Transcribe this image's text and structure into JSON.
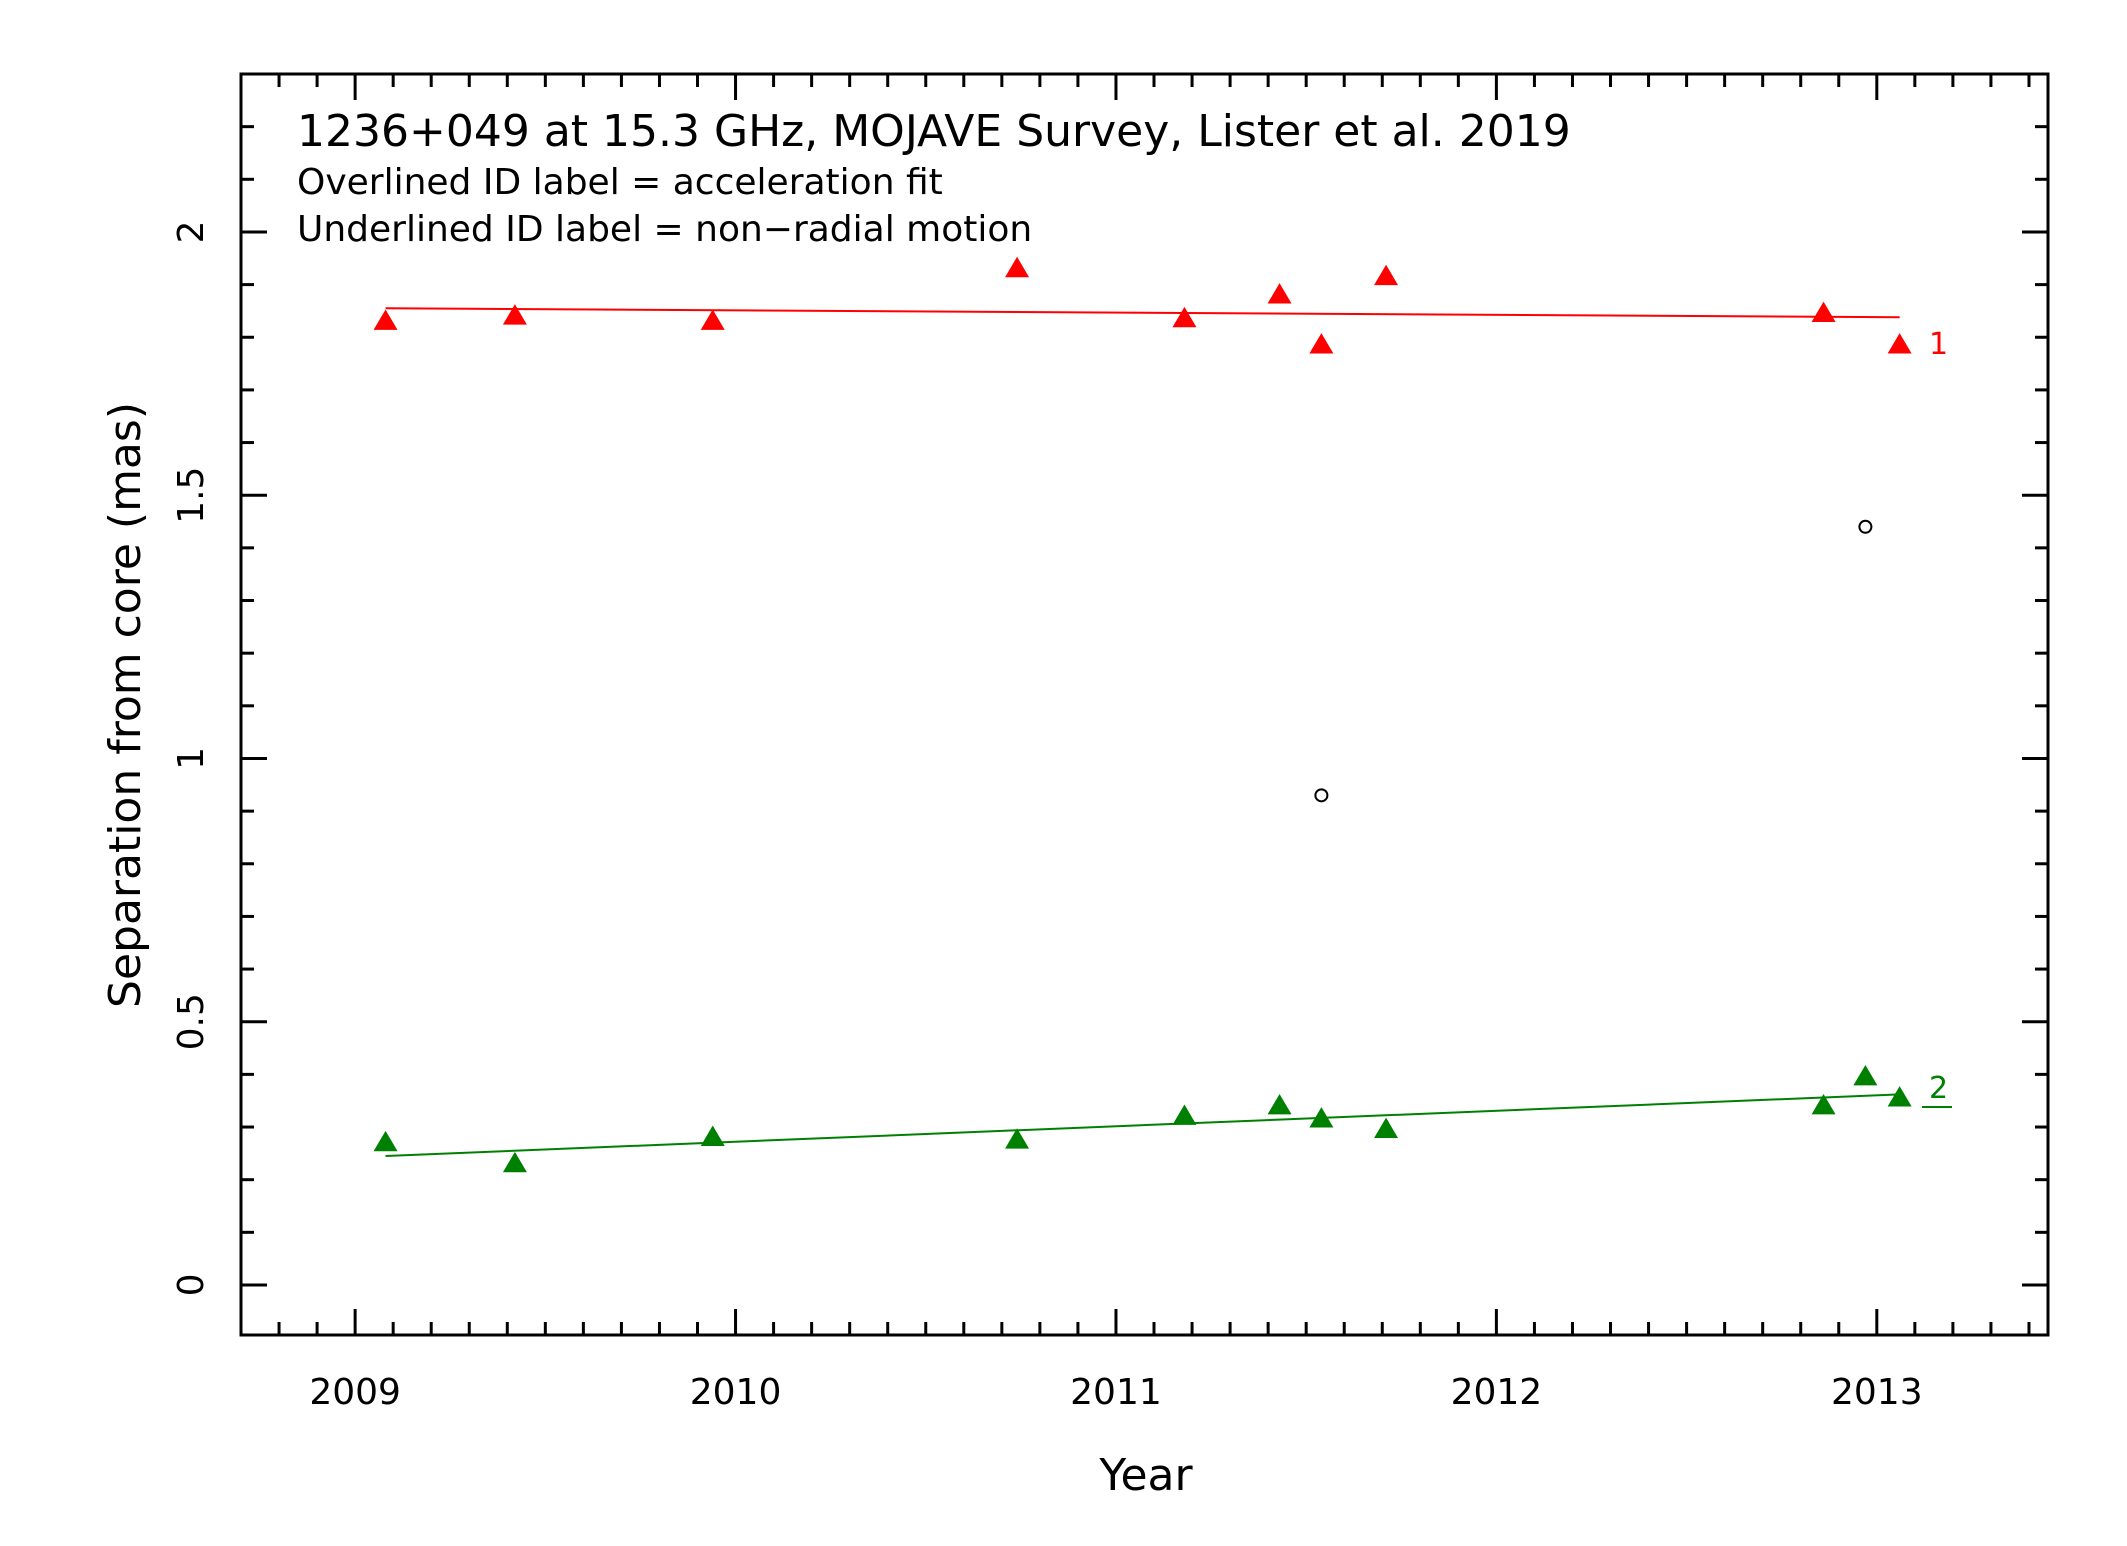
{
  "chart_data": {
    "type": "scatter",
    "title": "1236+049 at 15.3 GHz, MOJAVE Survey, Lister et al. 2019",
    "notes": [
      "Overlined ID label = acceleration fit",
      "Underlined ID label = non−radial motion"
    ],
    "xlabel": "Year",
    "ylabel": "Separation from core (mas)",
    "xlim": [
      2008.7,
      2013.45
    ],
    "ylim": [
      -0.095,
      2.3
    ],
    "x_ticks": [
      2009,
      2010,
      2011,
      2012,
      2013
    ],
    "y_ticks": [
      0,
      0.5,
      1,
      1.5,
      2
    ],
    "y_tick_labels": [
      "0",
      "0.5",
      "1",
      "1.5",
      "2"
    ],
    "grid": false,
    "series": [
      {
        "name": "1",
        "id_label": "1",
        "underlined": false,
        "marker": "triangle",
        "color": "#ff0000",
        "x": [
          2009.08,
          2009.42,
          2009.94,
          2010.74,
          2011.18,
          2011.43,
          2011.54,
          2011.71,
          2012.86,
          2013.06
        ],
        "y": [
          1.83,
          1.84,
          1.83,
          1.93,
          1.835,
          1.88,
          1.785,
          1.915,
          1.845,
          1.785
        ],
        "fit": {
          "x": [
            2009.08,
            2013.06
          ],
          "y": [
            1.855,
            1.838
          ]
        }
      },
      {
        "name": "2",
        "id_label": "2",
        "underlined": true,
        "marker": "triangle",
        "color": "#008000",
        "x": [
          2009.08,
          2009.42,
          2009.94,
          2010.74,
          2011.18,
          2011.43,
          2011.54,
          2011.71,
          2012.86,
          2012.97,
          2013.06
        ],
        "y": [
          0.27,
          0.23,
          0.28,
          0.275,
          0.32,
          0.34,
          0.315,
          0.295,
          0.34,
          0.395,
          0.355
        ],
        "fit": {
          "x": [
            2009.08,
            2013.06
          ],
          "y": [
            0.245,
            0.362
          ]
        }
      },
      {
        "marker": "open-circle",
        "color": "#000000",
        "x": [
          2011.54,
          2012.97
        ],
        "y": [
          0.93,
          1.44
        ]
      }
    ]
  }
}
